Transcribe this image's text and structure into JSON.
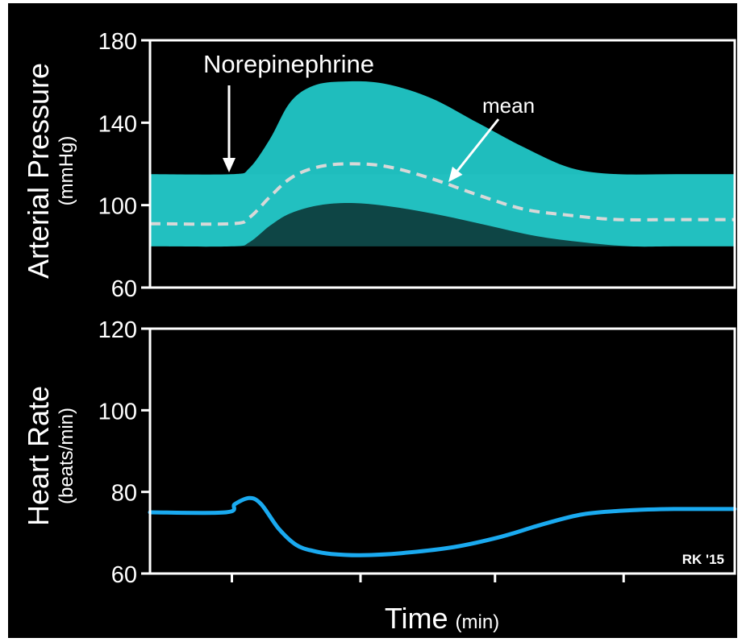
{
  "chart_data": [
    {
      "type": "area",
      "ylabel": "Arterial Pressure",
      "yunit": "(mmHg)",
      "ylim": [
        60,
        180
      ],
      "yticks": [
        "60",
        "100",
        "140",
        "180"
      ],
      "annotations": {
        "drug": "Norepinephrine",
        "mean": "mean"
      },
      "colors": {
        "band": "#1fbdbd",
        "mean": "#d8d8d8",
        "axes": "#ffffff"
      },
      "series": [
        {
          "kind": "upper",
          "x": [
            0,
            0.14,
            0.17,
            0.205,
            0.24,
            0.28,
            0.33,
            0.4,
            0.48,
            0.56,
            0.64,
            0.72,
            0.8,
            0.9,
            1.0
          ],
          "values": [
            115,
            115,
            118,
            132,
            150,
            158,
            160,
            159,
            152,
            140,
            128,
            118,
            115,
            115,
            115
          ]
        },
        {
          "kind": "lower",
          "x": [
            0,
            0.14,
            0.17,
            0.205,
            0.24,
            0.29,
            0.35,
            0.42,
            0.5,
            0.58,
            0.66,
            0.74,
            0.82,
            0.9,
            1.0
          ],
          "values": [
            80,
            80,
            82,
            90,
            96,
            100,
            101,
            99,
            95,
            90,
            85,
            82,
            80,
            80,
            80
          ]
        },
        {
          "name": "mean",
          "kind": "mean",
          "x": [
            0,
            0.14,
            0.17,
            0.205,
            0.24,
            0.28,
            0.33,
            0.4,
            0.48,
            0.56,
            0.64,
            0.72,
            0.8,
            0.9,
            1.0
          ],
          "values": [
            91,
            91,
            94,
            104,
            113,
            118,
            120,
            119,
            113,
            105,
            98,
            95,
            93,
            93,
            93
          ]
        }
      ]
    },
    {
      "type": "line",
      "ylabel": "Heart Rate",
      "yunit": "(beats/min)",
      "ylim": [
        60,
        120
      ],
      "yticks": [
        "60",
        "80",
        "100",
        "120"
      ],
      "colors": {
        "line": "#1aaaf0"
      },
      "series": [
        {
          "kind": "heart_rate",
          "x": [
            0,
            0.13,
            0.145,
            0.17,
            0.19,
            0.22,
            0.25,
            0.28,
            0.31,
            0.36,
            0.43,
            0.52,
            0.6,
            0.67,
            0.74,
            0.82,
            0.9,
            1.0
          ],
          "values": [
            75,
            75,
            77,
            78.5,
            77,
            71,
            67,
            65.5,
            64.8,
            64.5,
            65,
            66.5,
            69,
            72,
            74.5,
            75.5,
            75.8,
            75.8
          ]
        }
      ]
    }
  ],
  "xaxis": {
    "label": "Time",
    "unit": "(min)"
  },
  "signature": "RK '15"
}
